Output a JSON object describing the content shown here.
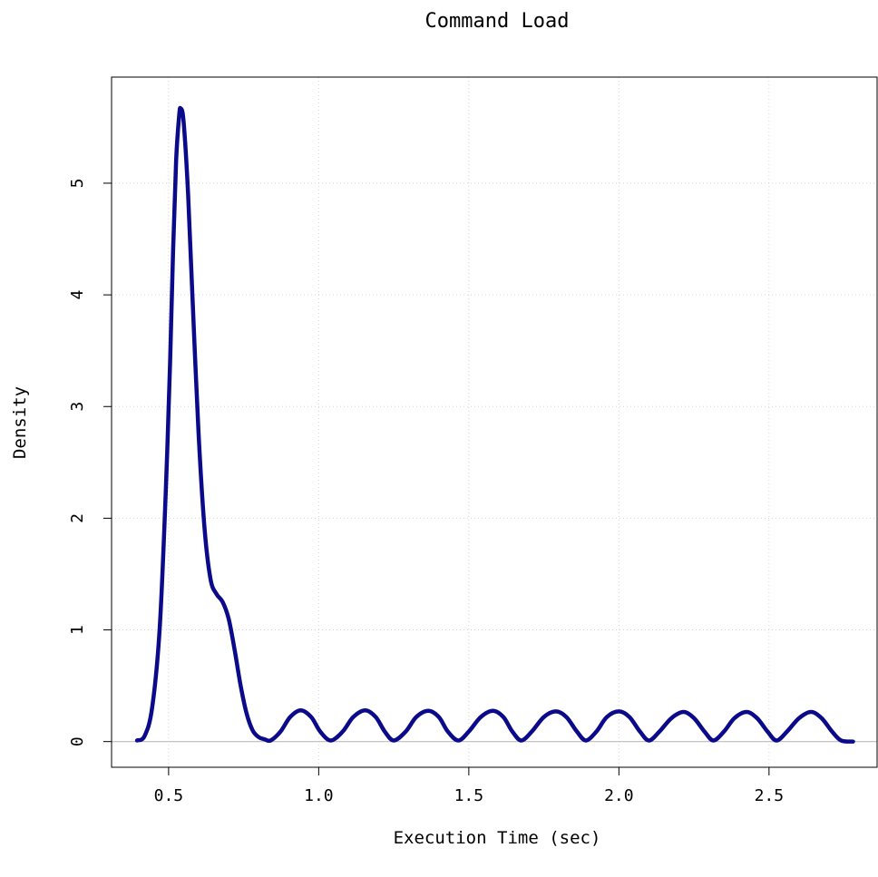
{
  "chart_data": {
    "type": "line",
    "title": "Command Load",
    "xlabel": "Execution Time (sec)",
    "ylabel": "Density",
    "xlim": [
      0.31,
      2.86
    ],
    "ylim": [
      -0.23,
      5.95
    ],
    "x_ticks": [
      0.5,
      1.0,
      1.5,
      2.0,
      2.5
    ],
    "x_tick_labels": [
      "0.5",
      "1.0",
      "1.5",
      "2.0",
      "2.5"
    ],
    "y_ticks": [
      0,
      1,
      2,
      3,
      4,
      5
    ],
    "y_tick_labels": [
      "0",
      "1",
      "2",
      "3",
      "4",
      "5"
    ],
    "grid": true,
    "series": [
      {
        "color": "#0a0a8a",
        "points": [
          [
            0.395,
            0.01
          ],
          [
            0.42,
            0.05
          ],
          [
            0.445,
            0.3
          ],
          [
            0.47,
            1.0
          ],
          [
            0.49,
            2.2
          ],
          [
            0.505,
            3.4
          ],
          [
            0.515,
            4.4
          ],
          [
            0.525,
            5.2
          ],
          [
            0.535,
            5.6
          ],
          [
            0.54,
            5.67
          ],
          [
            0.55,
            5.55
          ],
          [
            0.565,
            4.9
          ],
          [
            0.58,
            3.95
          ],
          [
            0.6,
            2.75
          ],
          [
            0.62,
            1.9
          ],
          [
            0.64,
            1.45
          ],
          [
            0.66,
            1.32
          ],
          [
            0.68,
            1.25
          ],
          [
            0.7,
            1.1
          ],
          [
            0.72,
            0.82
          ],
          [
            0.74,
            0.5
          ],
          [
            0.76,
            0.25
          ],
          [
            0.78,
            0.1
          ],
          [
            0.8,
            0.04
          ],
          [
            0.82,
            0.02
          ],
          [
            0.84,
            0.01
          ],
          [
            0.873,
            0.09
          ],
          [
            0.905,
            0.22
          ],
          [
            0.94,
            0.28
          ],
          [
            0.975,
            0.22
          ],
          [
            1.005,
            0.09
          ],
          [
            1.04,
            0.01
          ],
          [
            1.08,
            0.09
          ],
          [
            1.115,
            0.22
          ],
          [
            1.155,
            0.28
          ],
          [
            1.19,
            0.22
          ],
          [
            1.22,
            0.09
          ],
          [
            1.25,
            0.01
          ],
          [
            1.29,
            0.09
          ],
          [
            1.325,
            0.22
          ],
          [
            1.365,
            0.275
          ],
          [
            1.4,
            0.22
          ],
          [
            1.43,
            0.09
          ],
          [
            1.465,
            0.01
          ],
          [
            1.5,
            0.09
          ],
          [
            1.54,
            0.22
          ],
          [
            1.58,
            0.275
          ],
          [
            1.615,
            0.22
          ],
          [
            1.645,
            0.09
          ],
          [
            1.675,
            0.01
          ],
          [
            1.71,
            0.09
          ],
          [
            1.75,
            0.22
          ],
          [
            1.79,
            0.27
          ],
          [
            1.825,
            0.22
          ],
          [
            1.86,
            0.09
          ],
          [
            1.89,
            0.01
          ],
          [
            1.925,
            0.09
          ],
          [
            1.96,
            0.22
          ],
          [
            2.0,
            0.27
          ],
          [
            2.035,
            0.22
          ],
          [
            2.07,
            0.09
          ],
          [
            2.1,
            0.01
          ],
          [
            2.135,
            0.09
          ],
          [
            2.175,
            0.21
          ],
          [
            2.215,
            0.265
          ],
          [
            2.25,
            0.21
          ],
          [
            2.285,
            0.09
          ],
          [
            2.315,
            0.01
          ],
          [
            2.35,
            0.09
          ],
          [
            2.385,
            0.21
          ],
          [
            2.425,
            0.265
          ],
          [
            2.46,
            0.21
          ],
          [
            2.495,
            0.09
          ],
          [
            2.525,
            0.01
          ],
          [
            2.56,
            0.09
          ],
          [
            2.6,
            0.21
          ],
          [
            2.64,
            0.265
          ],
          [
            2.675,
            0.21
          ],
          [
            2.71,
            0.09
          ],
          [
            2.74,
            0.01
          ],
          [
            2.78,
            0.0
          ]
        ]
      }
    ]
  }
}
